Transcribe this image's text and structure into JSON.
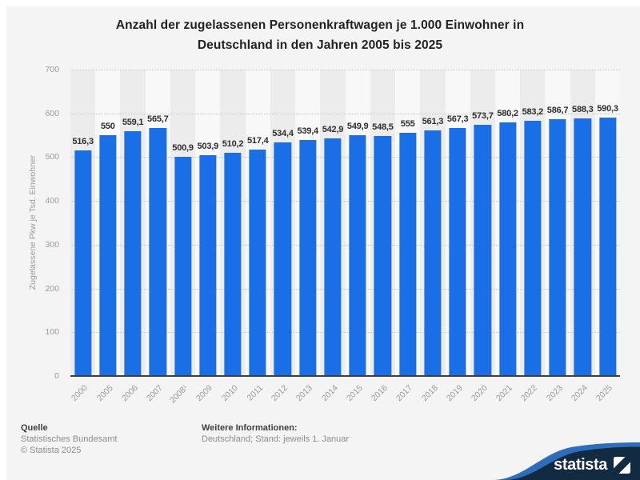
{
  "header": {
    "title_lines": [
      "Anzahl der zugelassenen Personenkraftwagen je 1.000 Einwohner in",
      "Deutschland in den Jahren 2005 bis 2025"
    ]
  },
  "chart_data": {
    "type": "bar",
    "title": "Anzahl der zugelassenen Personenkraftwagen je 1.000 Einwohner in Deutschland in den Jahren 2005 bis 2025",
    "xlabel": "",
    "ylabel": "Zugelassene Pkw je Tsd. Einwohner",
    "ylim": [
      0,
      700
    ],
    "yticks": [
      0,
      100,
      200,
      300,
      400,
      500,
      600,
      700
    ],
    "grid": true,
    "legend": false,
    "categories": [
      "2000",
      "2005",
      "2006",
      "2007",
      "2008¹",
      "2009",
      "2010",
      "2011",
      "2012",
      "2013",
      "2014",
      "2015",
      "2016",
      "2017",
      "2018",
      "2019",
      "2020",
      "2021",
      "2022",
      "2023",
      "2024",
      "2025"
    ],
    "values": [
      516.3,
      550,
      559.1,
      565.7,
      500.9,
      503.9,
      510.2,
      517.4,
      534.4,
      539.4,
      542.9,
      549.9,
      548.5,
      555,
      561.3,
      567.3,
      573.7,
      580.2,
      583.2,
      586.7,
      588.3,
      590.3
    ],
    "value_labels": [
      "516,3",
      "550",
      "559,1",
      "565,7",
      "500,9",
      "503,9",
      "510,2",
      "517,4",
      "534,4",
      "539,4",
      "542,9",
      "549,9",
      "548,5",
      "555",
      "561,3",
      "567,3",
      "573,7",
      "580,2",
      "583,2",
      "586,7",
      "588,3",
      "590,3"
    ],
    "bar_color": "#1a6ee6"
  },
  "footer": {
    "source_heading": "Quelle",
    "source_name": "Statistisches Bundesamt",
    "copyright": "© Statista 2025",
    "info_heading": "Weitere Informationen:",
    "info_text": "Deutschland; Stand: jeweils 1. Januar"
  },
  "branding": {
    "logo_text": "statista"
  },
  "colors": {
    "background_card": "#f4f4f4",
    "band_even": "#ececec",
    "band_odd": "#f8f8f8",
    "gridline": "#c8c8c8",
    "axis": "#3f3f3f",
    "tick_text": "#9a9a9a",
    "value_text": "#2e2e2e",
    "title_text": "#222222",
    "footer_text": "#8c8c8c",
    "logo_navy": "#122a42",
    "logo_swoosh_blue": "#2d6ebb"
  }
}
